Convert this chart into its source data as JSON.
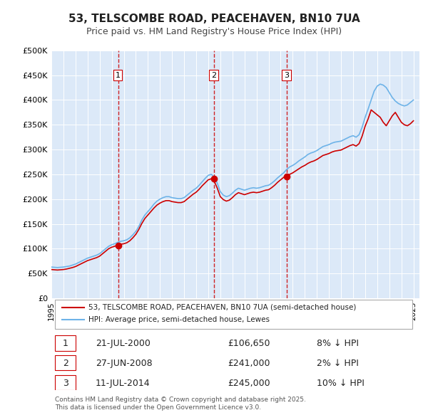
{
  "title": "53, TELSCOMBE ROAD, PEACEHAVEN, BN10 7UA",
  "subtitle": "Price paid vs. HM Land Registry's House Price Index (HPI)",
  "ylabel": "",
  "ylim": [
    0,
    500000
  ],
  "yticks": [
    0,
    50000,
    100000,
    150000,
    200000,
    250000,
    300000,
    350000,
    400000,
    450000,
    500000
  ],
  "ytick_labels": [
    "£0",
    "£50K",
    "£100K",
    "£150K",
    "£200K",
    "£250K",
    "£300K",
    "£350K",
    "£400K",
    "£450K",
    "£500K"
  ],
  "xlim_start": 1995.0,
  "xlim_end": 2025.5,
  "background_color": "#ffffff",
  "plot_bg_color": "#dce9f8",
  "grid_color": "#ffffff",
  "sale_color": "#cc0000",
  "hpi_color": "#6db3e8",
  "vline_color": "#cc0000",
  "sale_marker_color": "#cc0000",
  "title_fontsize": 11,
  "subtitle_fontsize": 9,
  "legend_entry1": "53, TELSCOMBE ROAD, PEACEHAVEN, BN10 7UA (semi-detached house)",
  "legend_entry2": "HPI: Average price, semi-detached house, Lewes",
  "transactions": [
    {
      "num": 1,
      "date": 2000.55,
      "price": 106650,
      "label": "21-JUL-2000",
      "price_str": "£106,650",
      "pct": "8% ↓ HPI"
    },
    {
      "num": 2,
      "date": 2008.49,
      "price": 241000,
      "label": "27-JUN-2008",
      "price_str": "£241,000",
      "pct": "2% ↓ HPI"
    },
    {
      "num": 3,
      "date": 2014.53,
      "price": 245000,
      "label": "11-JUL-2014",
      "price_str": "£245,000",
      "pct": "10% ↓ HPI"
    }
  ],
  "footnote": "Contains HM Land Registry data © Crown copyright and database right 2025.\nThis data is licensed under the Open Government Licence v3.0.",
  "hpi_data": {
    "years": [
      1995.0,
      1995.25,
      1995.5,
      1995.75,
      1996.0,
      1996.25,
      1996.5,
      1996.75,
      1997.0,
      1997.25,
      1997.5,
      1997.75,
      1998.0,
      1998.25,
      1998.5,
      1998.75,
      1999.0,
      1999.25,
      1999.5,
      1999.75,
      2000.0,
      2000.25,
      2000.5,
      2000.75,
      2001.0,
      2001.25,
      2001.5,
      2001.75,
      2002.0,
      2002.25,
      2002.5,
      2002.75,
      2003.0,
      2003.25,
      2003.5,
      2003.75,
      2004.0,
      2004.25,
      2004.5,
      2004.75,
      2005.0,
      2005.25,
      2005.5,
      2005.75,
      2006.0,
      2006.25,
      2006.5,
      2006.75,
      2007.0,
      2007.25,
      2007.5,
      2007.75,
      2008.0,
      2008.25,
      2008.5,
      2008.75,
      2009.0,
      2009.25,
      2009.5,
      2009.75,
      2010.0,
      2010.25,
      2010.5,
      2010.75,
      2011.0,
      2011.25,
      2011.5,
      2011.75,
      2012.0,
      2012.25,
      2012.5,
      2012.75,
      2013.0,
      2013.25,
      2013.5,
      2013.75,
      2014.0,
      2014.25,
      2014.5,
      2014.75,
      2015.0,
      2015.25,
      2015.5,
      2015.75,
      2016.0,
      2016.25,
      2016.5,
      2016.75,
      2017.0,
      2017.25,
      2017.5,
      2017.75,
      2018.0,
      2018.25,
      2018.5,
      2018.75,
      2019.0,
      2019.25,
      2019.5,
      2019.75,
      2020.0,
      2020.25,
      2020.5,
      2020.75,
      2021.0,
      2021.25,
      2021.5,
      2021.75,
      2022.0,
      2022.25,
      2022.5,
      2022.75,
      2023.0,
      2023.25,
      2023.5,
      2023.75,
      2024.0,
      2024.25,
      2024.5,
      2024.75,
      2025.0
    ],
    "values": [
      63000,
      62500,
      62000,
      62500,
      63000,
      64000,
      65000,
      67000,
      69000,
      72000,
      75000,
      78000,
      81000,
      83000,
      85000,
      87000,
      90000,
      95000,
      100000,
      105000,
      108000,
      110000,
      113000,
      115000,
      116000,
      118000,
      122000,
      128000,
      135000,
      145000,
      158000,
      168000,
      175000,
      182000,
      190000,
      196000,
      200000,
      203000,
      205000,
      205000,
      203000,
      202000,
      201000,
      201000,
      203000,
      208000,
      213000,
      218000,
      222000,
      228000,
      235000,
      242000,
      248000,
      250000,
      245000,
      232000,
      215000,
      208000,
      205000,
      207000,
      212000,
      218000,
      222000,
      220000,
      218000,
      220000,
      222000,
      223000,
      222000,
      223000,
      225000,
      227000,
      228000,
      232000,
      237000,
      243000,
      248000,
      253000,
      260000,
      265000,
      268000,
      272000,
      277000,
      281000,
      285000,
      290000,
      293000,
      295000,
      298000,
      302000,
      306000,
      308000,
      310000,
      313000,
      315000,
      316000,
      317000,
      320000,
      323000,
      326000,
      328000,
      325000,
      330000,
      345000,
      365000,
      382000,
      400000,
      418000,
      428000,
      432000,
      430000,
      425000,
      415000,
      405000,
      398000,
      393000,
      390000,
      388000,
      390000,
      395000,
      400000
    ]
  },
  "price_data": {
    "years": [
      1995.0,
      1995.25,
      1995.5,
      1995.75,
      1996.0,
      1996.25,
      1996.5,
      1996.75,
      1997.0,
      1997.25,
      1997.5,
      1997.75,
      1998.0,
      1998.25,
      1998.5,
      1998.75,
      1999.0,
      1999.25,
      1999.5,
      1999.75,
      2000.0,
      2000.25,
      2000.5,
      2000.75,
      2001.0,
      2001.25,
      2001.5,
      2001.75,
      2002.0,
      2002.25,
      2002.5,
      2002.75,
      2003.0,
      2003.25,
      2003.5,
      2003.75,
      2004.0,
      2004.25,
      2004.5,
      2004.75,
      2005.0,
      2005.25,
      2005.5,
      2005.75,
      2006.0,
      2006.25,
      2006.5,
      2006.75,
      2007.0,
      2007.25,
      2007.5,
      2007.75,
      2008.0,
      2008.25,
      2008.5,
      2008.75,
      2009.0,
      2009.25,
      2009.5,
      2009.75,
      2010.0,
      2010.25,
      2010.5,
      2010.75,
      2011.0,
      2011.25,
      2011.5,
      2011.75,
      2012.0,
      2012.25,
      2012.5,
      2012.75,
      2013.0,
      2013.25,
      2013.5,
      2013.75,
      2014.0,
      2014.25,
      2014.5,
      2014.75,
      2015.0,
      2015.25,
      2015.5,
      2015.75,
      2016.0,
      2016.25,
      2016.5,
      2016.75,
      2017.0,
      2017.25,
      2017.5,
      2017.75,
      2018.0,
      2018.25,
      2018.5,
      2018.75,
      2019.0,
      2019.25,
      2019.5,
      2019.75,
      2020.0,
      2020.25,
      2020.5,
      2020.75,
      2021.0,
      2021.25,
      2021.5,
      2021.75,
      2022.0,
      2022.25,
      2022.5,
      2022.75,
      2023.0,
      2023.25,
      2023.5,
      2023.75,
      2024.0,
      2024.25,
      2024.5,
      2024.75,
      2025.0
    ],
    "values": [
      58000,
      57500,
      57000,
      57500,
      58000,
      59000,
      60500,
      62000,
      64000,
      67000,
      70000,
      73000,
      76000,
      78000,
      80000,
      82000,
      85000,
      90000,
      95000,
      100000,
      103000,
      105000,
      107000,
      109000,
      110000,
      112000,
      116000,
      122000,
      129000,
      139000,
      151000,
      161000,
      168000,
      175000,
      182000,
      188000,
      192000,
      195000,
      197000,
      197000,
      195000,
      194000,
      193000,
      193000,
      195000,
      200000,
      205000,
      210000,
      214000,
      220000,
      227000,
      233000,
      239000,
      241000,
      236000,
      222000,
      205000,
      199000,
      196000,
      198000,
      203000,
      209000,
      213000,
      211000,
      209000,
      211000,
      213000,
      214000,
      213000,
      214000,
      216000,
      218000,
      219000,
      223000,
      228000,
      234000,
      239000,
      244000,
      245000,
      250000,
      253000,
      257000,
      261000,
      265000,
      268000,
      272000,
      275000,
      277000,
      280000,
      284000,
      288000,
      290000,
      292000,
      295000,
      297000,
      298000,
      299000,
      302000,
      305000,
      308000,
      310000,
      307000,
      312000,
      327000,
      347000,
      362000,
      380000,
      375000,
      370000,
      365000,
      355000,
      348000,
      358000,
      368000,
      375000,
      365000,
      355000,
      350000,
      348000,
      352000,
      358000
    ]
  }
}
